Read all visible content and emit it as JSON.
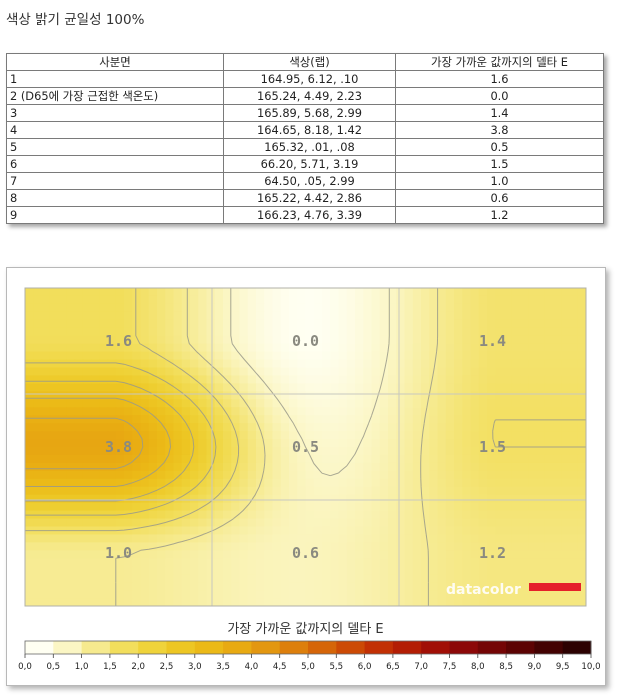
{
  "page_title": "색상 밝기 균일성 100%",
  "table": {
    "headers": [
      "사분면",
      "색상(랩)",
      "가장 가까운 값까지의 델타 E"
    ],
    "rows": [
      {
        "label": "1",
        "lab": "164.95,   6.12,    .10",
        "de": "1.6"
      },
      {
        "label": "2 (D65에 가장 근접한 색온도)",
        "lab": "165.24,   4.49,   2.23",
        "de": "0.0"
      },
      {
        "label": "3",
        "lab": "165.89,   5.68,   2.99",
        "de": "1.4"
      },
      {
        "label": "4",
        "lab": "164.65,   8.18,   1.42",
        "de": "3.8"
      },
      {
        "label": "5",
        "lab": "165.32,    .01,    .08",
        "de": "0.5"
      },
      {
        "label": "6",
        "lab": "66.20,   5.71,   3.19",
        "de": "1.5"
      },
      {
        "label": "7",
        "lab": "64.50,    .05,   2.99",
        "de": "1.0"
      },
      {
        "label": "8",
        "lab": "165.22,   4.42,   2.86",
        "de": "0.6"
      },
      {
        "label": "9",
        "lab": "166.23,   4.76,   3.39",
        "de": "1.2"
      }
    ]
  },
  "chart_data": {
    "type": "heatmap",
    "grid_rows": 3,
    "grid_cols": 3,
    "values": [
      [
        1.6,
        0.0,
        1.4
      ],
      [
        3.8,
        0.5,
        1.5
      ],
      [
        1.0,
        0.6,
        1.2
      ]
    ],
    "value_labels": [
      [
        "1.6",
        "0.0",
        "1.4"
      ],
      [
        "3.8",
        "0.5",
        "1.5"
      ],
      [
        "1.0",
        "0.6",
        "1.2"
      ]
    ],
    "colorbar_label": "가장 가까운 값까지의 델타 E",
    "colorbar_range": [
      0,
      10
    ],
    "colorbar_ticks": [
      "0,0",
      "0,5",
      "1,0",
      "1,5",
      "2,0",
      "2,5",
      "3,0",
      "3,5",
      "4,0",
      "4,5",
      "5,0",
      "5,5",
      "6,0",
      "6,5",
      "7,0",
      "7,5",
      "8,0",
      "8,5",
      "9,0",
      "9,5",
      "10,0"
    ],
    "colorbar_colors": [
      "#fffff2",
      "#fbf6c4",
      "#f6ea8e",
      "#f2de5c",
      "#efd33a",
      "#edc623",
      "#ebb917",
      "#e8aa12",
      "#e39710",
      "#dd7f0c",
      "#d56508",
      "#cc4a05",
      "#c23004",
      "#b31d04",
      "#a10f06",
      "#8c0808",
      "#740505",
      "#5c0303",
      "#430202",
      "#2c0101"
    ],
    "watermark": "datacolor",
    "watermark_bar_color": "#e5202a"
  }
}
